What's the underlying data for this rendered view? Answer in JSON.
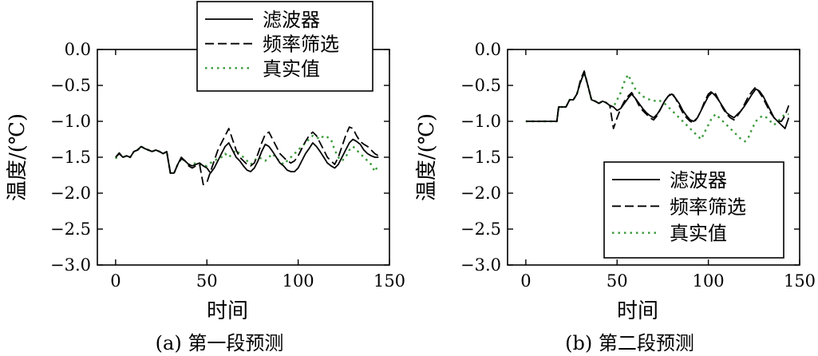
{
  "chart_data": [
    {
      "type": "line",
      "caption": "(a) 第一段预测",
      "xlabel": "时间",
      "ylabel": "温度/(℃)",
      "xlim": [
        -10,
        150
      ],
      "ylim": [
        -3.0,
        0.0
      ],
      "xticks": [
        "0",
        "50",
        "100",
        "150"
      ],
      "yticks": [
        "0.0",
        "−0.5",
        "−1.0",
        "−1.5",
        "−2.0",
        "−2.5",
        "−3.0"
      ],
      "legend_position": "top-center",
      "series": [
        {
          "name": "滤波器",
          "style": "solid",
          "color": "#000000",
          "x": [
            0,
            2,
            4,
            6,
            8,
            10,
            12,
            14,
            16,
            18,
            20,
            22,
            24,
            26,
            28,
            30,
            32,
            34,
            36,
            38,
            40,
            42,
            44,
            46,
            48,
            50,
            52,
            54,
            56,
            58,
            60,
            62,
            64,
            66,
            68,
            70,
            72,
            74,
            76,
            78,
            80,
            82,
            84,
            86,
            88,
            90,
            92,
            94,
            96,
            98,
            100,
            102,
            104,
            106,
            108,
            110,
            112,
            114,
            116,
            118,
            120,
            122,
            124,
            126,
            128,
            130,
            132,
            134,
            136,
            138,
            140,
            142,
            144
          ],
          "y": [
            -1.5,
            -1.45,
            -1.5,
            -1.48,
            -1.5,
            -1.42,
            -1.4,
            -1.35,
            -1.38,
            -1.4,
            -1.42,
            -1.4,
            -1.42,
            -1.45,
            -1.42,
            -1.72,
            -1.72,
            -1.6,
            -1.5,
            -1.55,
            -1.6,
            -1.62,
            -1.6,
            -1.58,
            -1.62,
            -1.65,
            -1.72,
            -1.65,
            -1.55,
            -1.45,
            -1.35,
            -1.3,
            -1.4,
            -1.5,
            -1.55,
            -1.62,
            -1.68,
            -1.7,
            -1.65,
            -1.55,
            -1.42,
            -1.32,
            -1.35,
            -1.42,
            -1.5,
            -1.58,
            -1.62,
            -1.68,
            -1.7,
            -1.7,
            -1.65,
            -1.55,
            -1.45,
            -1.38,
            -1.3,
            -1.35,
            -1.42,
            -1.5,
            -1.58,
            -1.62,
            -1.65,
            -1.6,
            -1.5,
            -1.4,
            -1.3,
            -1.25,
            -1.28,
            -1.32,
            -1.4,
            -1.45,
            -1.48,
            -1.5,
            -1.5
          ]
        },
        {
          "name": "频率筛选",
          "style": "dashed",
          "color": "#000000",
          "x": [
            0,
            2,
            4,
            6,
            8,
            10,
            12,
            14,
            16,
            18,
            20,
            22,
            24,
            26,
            28,
            30,
            32,
            34,
            36,
            38,
            40,
            42,
            44,
            46,
            48,
            50,
            52,
            54,
            56,
            58,
            60,
            62,
            64,
            66,
            68,
            70,
            72,
            74,
            76,
            78,
            80,
            82,
            84,
            86,
            88,
            90,
            92,
            94,
            96,
            98,
            100,
            102,
            104,
            106,
            108,
            110,
            112,
            114,
            116,
            118,
            120,
            122,
            124,
            126,
            128,
            130,
            132,
            134,
            136,
            138,
            140,
            142,
            144
          ],
          "y": [
            -1.5,
            -1.44,
            -1.5,
            -1.48,
            -1.5,
            -1.42,
            -1.4,
            -1.35,
            -1.38,
            -1.4,
            -1.42,
            -1.4,
            -1.42,
            -1.45,
            -1.42,
            -1.72,
            -1.72,
            -1.6,
            -1.52,
            -1.55,
            -1.62,
            -1.65,
            -1.62,
            -1.6,
            -1.88,
            -1.85,
            -1.7,
            -1.55,
            -1.4,
            -1.3,
            -1.2,
            -1.1,
            -1.25,
            -1.4,
            -1.5,
            -1.55,
            -1.6,
            -1.62,
            -1.58,
            -1.45,
            -1.3,
            -1.18,
            -1.15,
            -1.25,
            -1.35,
            -1.45,
            -1.5,
            -1.55,
            -1.58,
            -1.55,
            -1.48,
            -1.38,
            -1.28,
            -1.2,
            -1.15,
            -1.2,
            -1.3,
            -1.4,
            -1.5,
            -1.55,
            -1.6,
            -1.5,
            -1.35,
            -1.2,
            -1.08,
            -1.1,
            -1.2,
            -1.28,
            -1.32,
            -1.35,
            -1.4,
            -1.45,
            -1.48
          ]
        },
        {
          "name": "真实值",
          "style": "dotted",
          "color": "#3a9a3a",
          "x": [
            0,
            2,
            4,
            6,
            8,
            10,
            12,
            14,
            16,
            18,
            20,
            22,
            24,
            26,
            28,
            30,
            32,
            34,
            36,
            38,
            40,
            42,
            44,
            46,
            48,
            50,
            52,
            54,
            56,
            58,
            60,
            62,
            64,
            66,
            68,
            70,
            72,
            74,
            76,
            78,
            80,
            82,
            84,
            86,
            88,
            90,
            92,
            94,
            96,
            98,
            100,
            102,
            104,
            106,
            108,
            110,
            112,
            114,
            116,
            118,
            120,
            122,
            124,
            126,
            128,
            130,
            132,
            134,
            136,
            138,
            140,
            142,
            144
          ],
          "y": [
            -1.52,
            -1.45,
            -1.5,
            -1.48,
            -1.5,
            -1.42,
            -1.4,
            -1.35,
            -1.38,
            -1.4,
            -1.42,
            -1.4,
            -1.42,
            -1.45,
            -1.42,
            -1.72,
            -1.72,
            -1.6,
            -1.52,
            -1.55,
            -1.6,
            -1.6,
            -1.58,
            -1.6,
            -1.62,
            -1.62,
            -1.58,
            -1.55,
            -1.52,
            -1.5,
            -1.45,
            -1.5,
            -1.45,
            -1.4,
            -1.45,
            -1.5,
            -1.55,
            -1.6,
            -1.55,
            -1.5,
            -1.52,
            -1.55,
            -1.5,
            -1.45,
            -1.52,
            -1.55,
            -1.6,
            -1.55,
            -1.5,
            -1.45,
            -1.4,
            -1.35,
            -1.3,
            -1.25,
            -1.2,
            -1.22,
            -1.25,
            -1.2,
            -1.22,
            -1.25,
            -1.4,
            -1.5,
            -1.55,
            -1.5,
            -1.4,
            -1.35,
            -1.4,
            -1.45,
            -1.5,
            -1.55,
            -1.6,
            -1.7,
            -1.6
          ]
        }
      ]
    },
    {
      "type": "line",
      "caption": "(b) 第二段预测",
      "xlabel": "时间",
      "ylabel": "温度/(℃)",
      "xlim": [
        -10,
        150
      ],
      "ylim": [
        -3.0,
        0.0
      ],
      "xticks": [
        "0",
        "50",
        "100",
        "150"
      ],
      "yticks": [
        "0.0",
        "−0.5",
        "−1.0",
        "−1.5",
        "−2.0",
        "−2.5",
        "−3.0"
      ],
      "legend_position": "bottom-right",
      "series": [
        {
          "name": "滤波器",
          "style": "solid",
          "color": "#000000",
          "x": [
            0,
            5,
            10,
            15,
            17,
            18,
            20,
            22,
            24,
            26,
            28,
            30,
            32,
            34,
            36,
            38,
            40,
            42,
            44,
            46,
            48,
            50,
            52,
            54,
            56,
            58,
            60,
            62,
            64,
            66,
            68,
            70,
            72,
            74,
            76,
            78,
            80,
            82,
            84,
            86,
            88,
            90,
            92,
            94,
            96,
            98,
            100,
            102,
            104,
            106,
            108,
            110,
            112,
            114,
            116,
            118,
            120,
            122,
            124,
            126,
            128,
            130,
            132,
            134,
            136,
            138,
            140,
            142,
            144
          ],
          "y": [
            -1.0,
            -1.0,
            -1.0,
            -1.0,
            -1.0,
            -0.8,
            -0.8,
            -0.8,
            -0.7,
            -0.7,
            -0.62,
            -0.45,
            -0.32,
            -0.5,
            -0.7,
            -0.72,
            -0.75,
            -0.72,
            -0.74,
            -0.78,
            -0.8,
            -0.85,
            -0.82,
            -0.75,
            -0.68,
            -0.62,
            -0.68,
            -0.75,
            -0.82,
            -0.88,
            -0.92,
            -0.95,
            -0.9,
            -0.82,
            -0.72,
            -0.65,
            -0.62,
            -0.68,
            -0.75,
            -0.85,
            -0.92,
            -0.98,
            -1.0,
            -0.95,
            -0.85,
            -0.75,
            -0.65,
            -0.6,
            -0.65,
            -0.72,
            -0.8,
            -0.88,
            -0.92,
            -0.95,
            -0.9,
            -0.85,
            -0.78,
            -0.7,
            -0.62,
            -0.55,
            -0.58,
            -0.65,
            -0.75,
            -0.85,
            -0.95,
            -1.0,
            -1.05,
            -1.1,
            -0.95
          ]
        },
        {
          "name": "频率筛选",
          "style": "dashed",
          "color": "#000000",
          "x": [
            0,
            5,
            10,
            15,
            17,
            18,
            20,
            22,
            24,
            26,
            28,
            30,
            32,
            34,
            36,
            38,
            40,
            42,
            44,
            46,
            48,
            50,
            52,
            54,
            56,
            58,
            60,
            62,
            64,
            66,
            68,
            70,
            72,
            74,
            76,
            78,
            80,
            82,
            84,
            86,
            88,
            90,
            92,
            94,
            96,
            98,
            100,
            102,
            104,
            106,
            108,
            110,
            112,
            114,
            116,
            118,
            120,
            122,
            124,
            126,
            128,
            130,
            132,
            134,
            136,
            138,
            140,
            142,
            144
          ],
          "y": [
            -1.0,
            -1.0,
            -1.0,
            -1.0,
            -1.0,
            -0.8,
            -0.8,
            -0.8,
            -0.7,
            -0.7,
            -0.62,
            -0.42,
            -0.3,
            -0.5,
            -0.7,
            -0.72,
            -0.75,
            -0.72,
            -0.74,
            -0.78,
            -1.1,
            -0.95,
            -0.82,
            -0.72,
            -0.65,
            -0.6,
            -0.68,
            -0.78,
            -0.85,
            -0.9,
            -0.95,
            -0.98,
            -0.92,
            -0.82,
            -0.72,
            -0.65,
            -0.6,
            -0.68,
            -0.78,
            -0.88,
            -0.95,
            -1.0,
            -1.02,
            -0.95,
            -0.85,
            -0.72,
            -0.62,
            -0.58,
            -0.62,
            -0.72,
            -0.82,
            -0.9,
            -0.95,
            -0.98,
            -0.92,
            -0.85,
            -0.75,
            -0.65,
            -0.58,
            -0.52,
            -0.6,
            -0.68,
            -0.78,
            -0.88,
            -0.95,
            -1.0,
            -1.0,
            -0.92,
            -0.78
          ]
        },
        {
          "name": "真实值",
          "style": "dotted",
          "color": "#3a9a3a",
          "x": [
            0,
            5,
            10,
            15,
            17,
            18,
            20,
            22,
            24,
            26,
            28,
            30,
            32,
            34,
            36,
            38,
            40,
            42,
            44,
            46,
            48,
            50,
            52,
            54,
            56,
            58,
            60,
            62,
            64,
            66,
            68,
            70,
            72,
            74,
            76,
            78,
            80,
            82,
            84,
            86,
            88,
            90,
            92,
            94,
            96,
            98,
            100,
            102,
            104,
            106,
            108,
            110,
            112,
            114,
            116,
            118,
            120,
            122,
            124,
            126,
            128,
            130,
            132,
            134,
            136,
            138,
            140,
            142,
            144
          ],
          "y": [
            -1.0,
            -1.0,
            -1.0,
            -1.0,
            -1.0,
            -0.8,
            -0.8,
            -0.8,
            -0.7,
            -0.7,
            -0.62,
            -0.45,
            -0.32,
            -0.5,
            -0.7,
            -0.72,
            -0.75,
            -0.72,
            -0.74,
            -0.78,
            -0.8,
            -0.7,
            -0.6,
            -0.45,
            -0.35,
            -0.45,
            -0.55,
            -0.6,
            -0.65,
            -0.68,
            -0.7,
            -0.72,
            -0.7,
            -0.72,
            -0.75,
            -0.8,
            -0.85,
            -0.9,
            -0.95,
            -1.0,
            -1.05,
            -1.1,
            -1.15,
            -1.2,
            -1.25,
            -1.15,
            -1.05,
            -0.95,
            -0.9,
            -0.95,
            -1.0,
            -1.05,
            -1.1,
            -1.15,
            -1.2,
            -1.25,
            -1.28,
            -1.22,
            -1.1,
            -1.0,
            -0.95,
            -0.92,
            -0.95,
            -1.0,
            -1.05,
            -1.0,
            -0.95,
            -0.9,
            -0.9
          ]
        }
      ]
    }
  ]
}
